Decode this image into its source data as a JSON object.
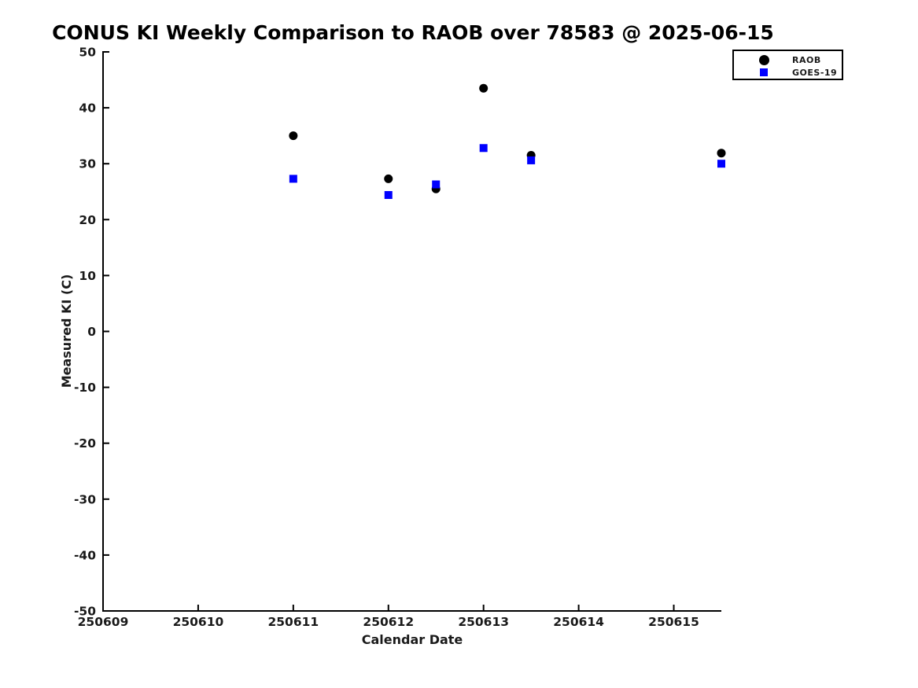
{
  "page": {
    "background_color": "#ffffff",
    "text_color": "#1a1a1a"
  },
  "chart_data": {
    "type": "scatter",
    "title": "CONUS KI Weekly Comparison to RAOB over 78583 @ 2025-06-15",
    "xlabel": "Calendar Date",
    "ylabel": "Measured KI (C)",
    "xlim": [
      250609,
      250615.5
    ],
    "ylim": [
      -50,
      50
    ],
    "xticks": [
      250609,
      250610,
      250611,
      250612,
      250613,
      250614,
      250615
    ],
    "yticks": [
      -50,
      -40,
      -30,
      -20,
      -10,
      0,
      10,
      20,
      30,
      40,
      50
    ],
    "grid": false,
    "legend_position": "top-right-outside",
    "axis_color": "#000000",
    "series": [
      {
        "name": "RAOB",
        "marker": "circle",
        "color": "#000000",
        "points": [
          [
            250611.0,
            35.0
          ],
          [
            250612.0,
            27.3
          ],
          [
            250612.5,
            25.5
          ],
          [
            250613.0,
            43.5
          ],
          [
            250613.5,
            31.5
          ],
          [
            250615.5,
            31.9
          ]
        ]
      },
      {
        "name": "GOES-19",
        "marker": "square",
        "color": "#0000ff",
        "points": [
          [
            250611.0,
            27.3
          ],
          [
            250612.0,
            24.4
          ],
          [
            250612.5,
            26.3
          ],
          [
            250613.0,
            32.8
          ],
          [
            250613.5,
            30.6
          ],
          [
            250615.5,
            30.0
          ]
        ]
      }
    ]
  }
}
